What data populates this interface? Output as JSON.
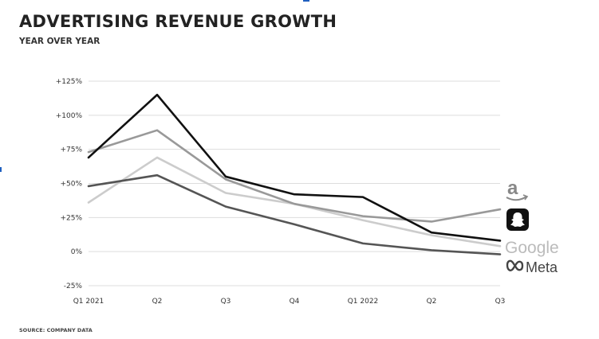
{
  "header": {
    "title": "ADVERTISING REVENUE GROWTH",
    "subtitle": "YEAR OVER YEAR"
  },
  "footer": {
    "source": "SOURCE: COMPANY DATA"
  },
  "legend": {
    "amazon_icon": "amazon-logo",
    "snap_icon": "snapchat-logo",
    "google_label": "Google",
    "meta_label": "Meta"
  },
  "chart_data": {
    "type": "line",
    "title": "ADVERTISING REVENUE GROWTH",
    "subtitle": "YEAR OVER YEAR",
    "xlabel": "",
    "ylabel": "",
    "categories": [
      "Q1 2021",
      "Q2",
      "Q3",
      "Q4",
      "Q1 2022",
      "Q2",
      "Q3"
    ],
    "yticks": [
      -25,
      0,
      25,
      50,
      75,
      100,
      125
    ],
    "ytick_labels": [
      "-25%",
      "0%",
      "+25%",
      "+50%",
      "+75%",
      "+100%",
      "+125%"
    ],
    "ylim": [
      -25,
      125
    ],
    "grid": true,
    "legend_placement": "right, at line ends",
    "series": [
      {
        "name": "Snap",
        "color": "#111111",
        "values": [
          69,
          115,
          55,
          42,
          40,
          14,
          8
        ]
      },
      {
        "name": "Amazon",
        "color": "#999999",
        "values": [
          73,
          89,
          53,
          35,
          26,
          22,
          31
        ]
      },
      {
        "name": "Google",
        "color": "#cccccc",
        "values": [
          36,
          69,
          43,
          35,
          23,
          12,
          4
        ]
      },
      {
        "name": "Meta",
        "color": "#555555",
        "values": [
          48,
          56,
          33,
          20,
          6,
          1,
          -2
        ]
      }
    ]
  }
}
